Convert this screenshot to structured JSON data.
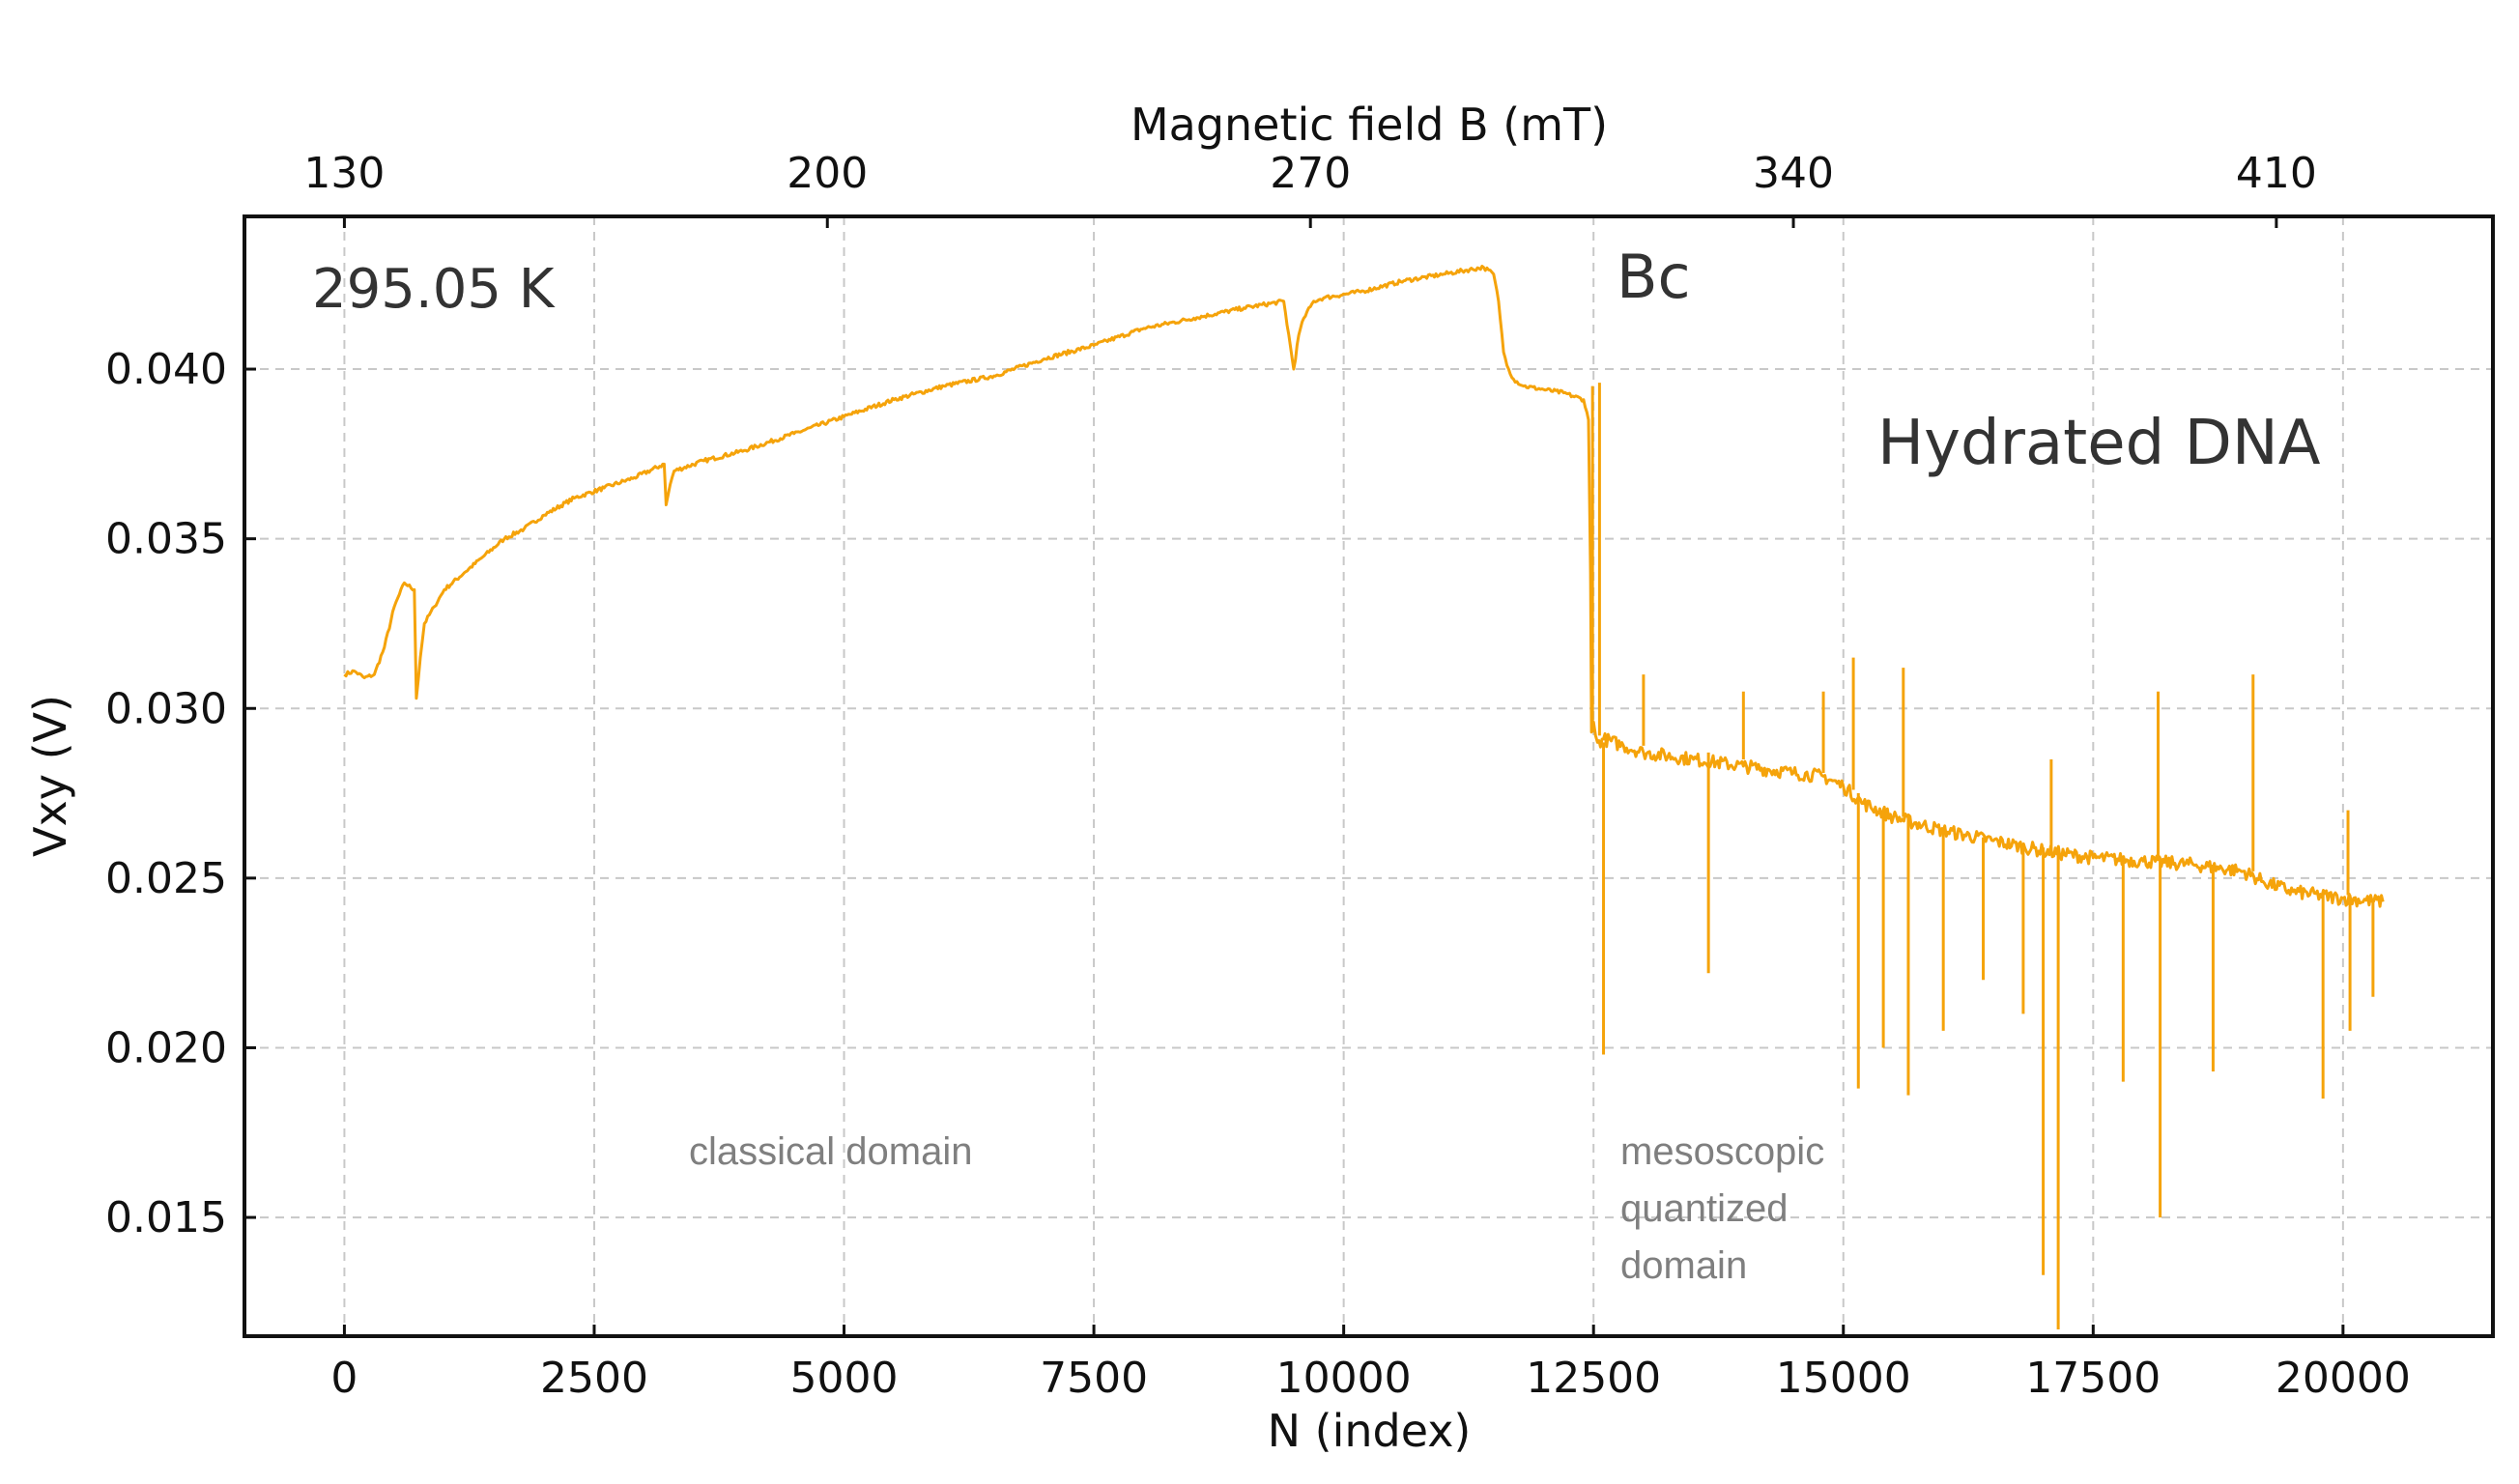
{
  "chart_data": {
    "type": "line",
    "title": "",
    "xlabel": "N (index)",
    "ylabel": "Vxy (V)",
    "top_xlabel": "Magnetic field B (mT)",
    "xlim": [
      -1000,
      21500
    ],
    "ylim": [
      0.0115,
      0.0445
    ],
    "x_ticks": [
      0,
      2500,
      5000,
      7500,
      10000,
      12500,
      15000,
      17500,
      20000
    ],
    "y_ticks": [
      0.015,
      0.02,
      0.025,
      0.03,
      0.035,
      0.04
    ],
    "y_tick_labels": [
      "0.015",
      "0.020",
      "0.025",
      "0.030",
      "0.035",
      "0.040"
    ],
    "top_ticks": {
      "positions": [
        0,
        4833,
        9667,
        14500,
        19333
      ],
      "labels": [
        "130",
        "200",
        "270",
        "340",
        "410"
      ]
    },
    "grid": true,
    "series": [
      {
        "name": "Hydrated DNA",
        "color": "#f5a30a",
        "x": [
          0,
          100,
          200,
          300,
          400,
          500,
          600,
          700,
          720,
          760,
          800,
          900,
          1000,
          1200,
          1400,
          1600,
          1800,
          2000,
          2300,
          2600,
          2900,
          3200,
          3220,
          3260,
          3300,
          3600,
          4000,
          4500,
          5000,
          5500,
          6000,
          6500,
          7000,
          7500,
          8000,
          8500,
          9000,
          9400,
          9500,
          9550,
          9600,
          9700,
          9800,
          10200,
          10600,
          11000,
          11400,
          11500,
          11550,
          11600,
          11650,
          11700,
          11800,
          12000,
          12200,
          12400,
          12450,
          12470,
          12480,
          12500,
          12520,
          12540,
          12600,
          12800,
          13000,
          13500,
          14000,
          14500,
          14800,
          15000,
          15200,
          15500,
          16000,
          16500,
          17000,
          17500,
          18000,
          18500,
          19000,
          19200,
          19500,
          20000,
          20400
        ],
        "y": [
          0.031,
          0.0311,
          0.0309,
          0.031,
          0.0318,
          0.033,
          0.0337,
          0.0335,
          0.0303,
          0.0315,
          0.0325,
          0.033,
          0.0335,
          0.034,
          0.0345,
          0.035,
          0.0353,
          0.0357,
          0.0362,
          0.0365,
          0.0368,
          0.0372,
          0.036,
          0.0366,
          0.037,
          0.0373,
          0.0376,
          0.0381,
          0.0386,
          0.0391,
          0.0395,
          0.0398,
          0.0403,
          0.0407,
          0.0412,
          0.0415,
          0.0418,
          0.042,
          0.04,
          0.041,
          0.0415,
          0.042,
          0.0421,
          0.0423,
          0.0426,
          0.0428,
          0.043,
          0.0428,
          0.042,
          0.0405,
          0.04,
          0.0397,
          0.0395,
          0.0394,
          0.0393,
          0.0391,
          0.0385,
          0.034,
          0.0293,
          0.0296,
          0.0292,
          0.029,
          0.0291,
          0.0289,
          0.0287,
          0.0285,
          0.0283,
          0.0281,
          0.028,
          0.0277,
          0.0272,
          0.0268,
          0.0264,
          0.0261,
          0.0258,
          0.0256,
          0.0255,
          0.0254,
          0.0252,
          0.0249,
          0.0246,
          0.0244,
          0.0243
        ]
      }
    ],
    "spikes": [
      {
        "x": 12490,
        "y0": 0.0293,
        "y1": 0.0395
      },
      {
        "x": 12560,
        "y0": 0.0292,
        "y1": 0.0396
      },
      {
        "x": 12600,
        "y0": 0.029,
        "y1": 0.0198
      },
      {
        "x": 13650,
        "y0": 0.0287,
        "y1": 0.0222
      },
      {
        "x": 13000,
        "y0": 0.0289,
        "y1": 0.031
      },
      {
        "x": 14000,
        "y0": 0.0285,
        "y1": 0.0305
      },
      {
        "x": 14800,
        "y0": 0.0281,
        "y1": 0.0305
      },
      {
        "x": 15100,
        "y0": 0.0276,
        "y1": 0.0315
      },
      {
        "x": 15150,
        "y0": 0.0275,
        "y1": 0.0188
      },
      {
        "x": 15400,
        "y0": 0.027,
        "y1": 0.02
      },
      {
        "x": 15600,
        "y0": 0.0268,
        "y1": 0.0312
      },
      {
        "x": 15650,
        "y0": 0.0268,
        "y1": 0.0186
      },
      {
        "x": 16000,
        "y0": 0.0265,
        "y1": 0.0205
      },
      {
        "x": 16400,
        "y0": 0.0262,
        "y1": 0.022
      },
      {
        "x": 16800,
        "y0": 0.026,
        "y1": 0.021
      },
      {
        "x": 17000,
        "y0": 0.0259,
        "y1": 0.0133
      },
      {
        "x": 17080,
        "y0": 0.0258,
        "y1": 0.0285
      },
      {
        "x": 17150,
        "y0": 0.0258,
        "y1": 0.0117
      },
      {
        "x": 17800,
        "y0": 0.0256,
        "y1": 0.019
      },
      {
        "x": 18150,
        "y0": 0.0255,
        "y1": 0.0305
      },
      {
        "x": 18170,
        "y0": 0.0255,
        "y1": 0.015
      },
      {
        "x": 18700,
        "y0": 0.0254,
        "y1": 0.0193
      },
      {
        "x": 19100,
        "y0": 0.0252,
        "y1": 0.031
      },
      {
        "x": 19800,
        "y0": 0.0246,
        "y1": 0.0185
      },
      {
        "x": 20050,
        "y0": 0.0245,
        "y1": 0.027
      },
      {
        "x": 20070,
        "y0": 0.0245,
        "y1": 0.0205
      },
      {
        "x": 20300,
        "y0": 0.0244,
        "y1": 0.0215
      }
    ],
    "annotations": {
      "temperature": "295.05 K",
      "bc": "Bc",
      "sample": "Hydrated DNA",
      "classical": "classical domain",
      "mesoscopic_lines": [
        "mesoscopic",
        "quantized",
        "domain"
      ]
    }
  }
}
